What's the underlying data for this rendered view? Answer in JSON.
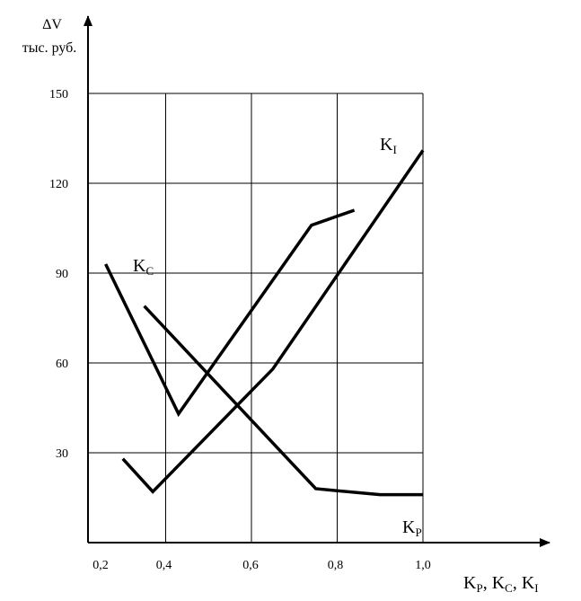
{
  "chart_data": {
    "type": "line",
    "ylabel_line1": "ΔV",
    "ylabel_line2": "тыс. руб.",
    "xlabel": {
      "parts": [
        {
          "main": "K",
          "sub": "P"
        },
        {
          "sep": ", "
        },
        {
          "main": "K",
          "sub": "C"
        },
        {
          "sep": ", "
        },
        {
          "main": "K",
          "sub": "I"
        }
      ]
    },
    "xlim": [
      0.2,
      1.0
    ],
    "ylim": [
      0,
      150
    ],
    "x_ticks": [
      "0,2",
      "0,4",
      "0,6",
      "0,8",
      "1,0"
    ],
    "x_tick_values": [
      0.2,
      0.4,
      0.6,
      0.8,
      1.0
    ],
    "y_ticks": [
      "30",
      "60",
      "90",
      "120",
      "150"
    ],
    "y_tick_values": [
      30,
      60,
      90,
      120,
      150
    ],
    "grid": true,
    "series": [
      {
        "main": "K",
        "sub": "C",
        "points": [
          [
            0.26,
            93
          ],
          [
            0.43,
            43
          ],
          [
            0.74,
            106
          ],
          [
            0.84,
            111
          ]
        ]
      },
      {
        "main": "K",
        "sub": "I",
        "points": [
          [
            0.3,
            28
          ],
          [
            0.37,
            17
          ],
          [
            0.65,
            58
          ],
          [
            1.0,
            131
          ]
        ]
      },
      {
        "main": "K",
        "sub": "P",
        "points": [
          [
            0.35,
            79
          ],
          [
            0.75,
            18
          ],
          [
            0.9,
            16
          ],
          [
            1.0,
            16
          ]
        ]
      }
    ]
  }
}
